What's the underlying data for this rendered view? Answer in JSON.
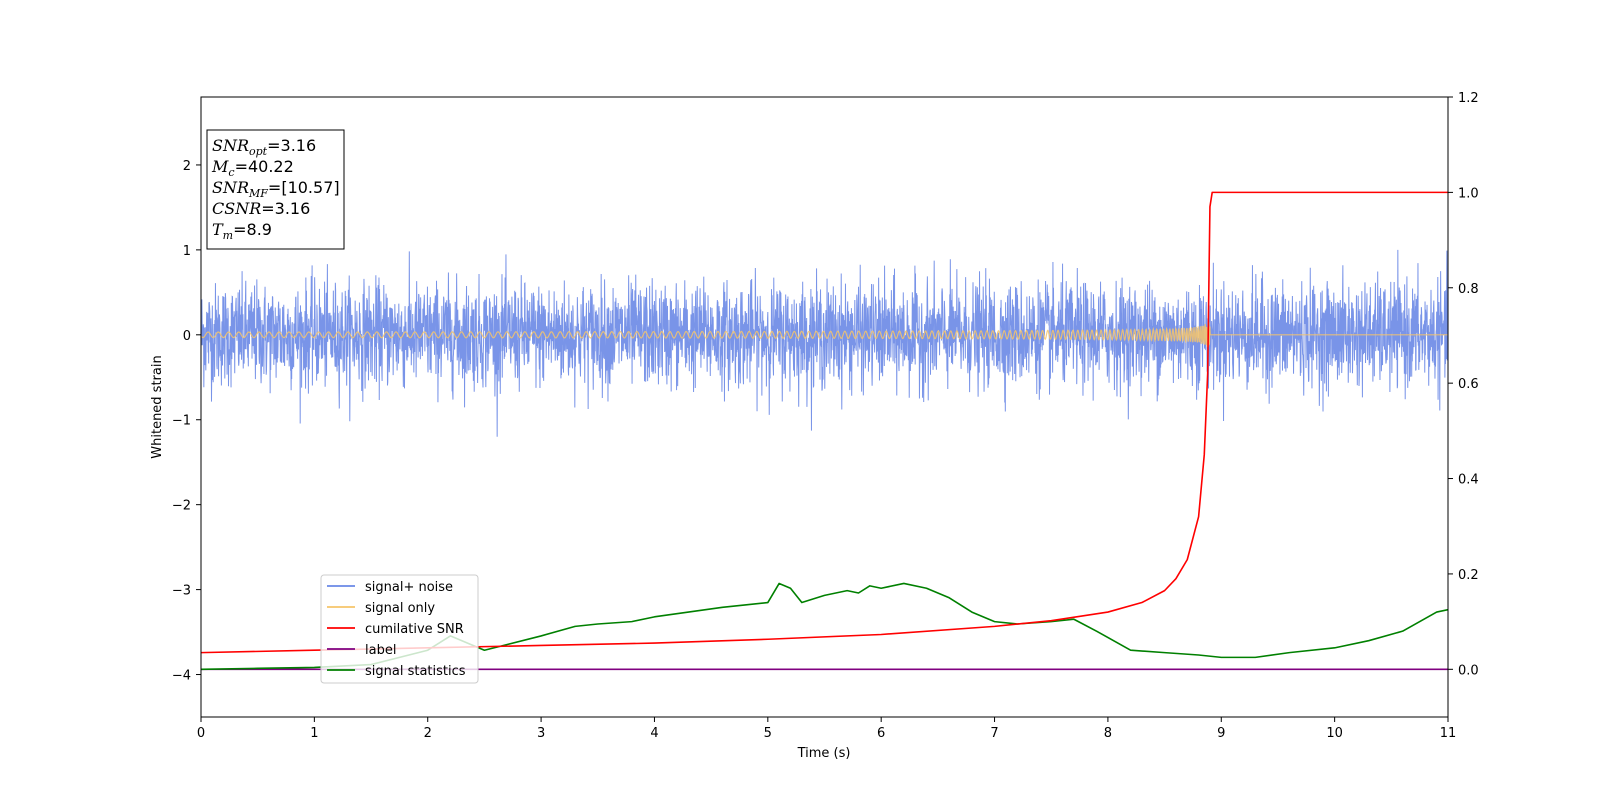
{
  "chart_data": {
    "type": "line",
    "title": "",
    "xlabel": "Time (s)",
    "ylabel": "Whitened strain",
    "xlim": [
      0,
      11
    ],
    "ylim_left": [
      -4.5,
      2.8
    ],
    "ylim_right": [
      -0.1,
      1.2
    ],
    "x_ticks": [
      0,
      1,
      2,
      3,
      4,
      5,
      6,
      7,
      8,
      9,
      10,
      11
    ],
    "x_tick_labels": [
      "0",
      "1",
      "2",
      "3",
      "4",
      "5",
      "6",
      "7",
      "8",
      "9",
      "10",
      "11"
    ],
    "y_left_ticks": [
      -4,
      -3,
      -2,
      -1,
      0,
      1,
      2
    ],
    "y_left_tick_labels": [
      "−4",
      "−3",
      "−2",
      "−1",
      "0",
      "1",
      "2"
    ],
    "y_right_ticks": [
      0.0,
      0.2,
      0.4,
      0.6,
      0.8,
      1.0,
      1.2
    ],
    "y_right_tick_labels": [
      "0.0",
      "0.2",
      "0.4",
      "0.6",
      "0.8",
      "1.0",
      "1.2"
    ],
    "grid": false,
    "legend_position": "lower-left",
    "colors": {
      "signal_noise": "#6a88e6",
      "signal_only": "#f6c46a",
      "cumulative_snr": "#ff0000",
      "label": "#800080",
      "signal_statistics": "#008000"
    },
    "series": [
      {
        "name": "signal+ noise",
        "axis": "left",
        "description_values": {
          "amplitude_range": [
            -1.2,
            1.0
          ],
          "mean": 0
        }
      },
      {
        "name": "signal only",
        "axis": "left",
        "description_values": {
          "baseline": 0,
          "chirp_peak_time": 8.9,
          "chirp_peak_amplitude": 0.15
        }
      },
      {
        "name": "cumilative SNR",
        "axis": "right",
        "x": [
          0,
          1,
          2,
          3,
          4,
          5,
          6,
          7,
          7.5,
          8,
          8.3,
          8.5,
          8.6,
          8.7,
          8.8,
          8.85,
          8.88,
          8.9,
          8.92,
          9,
          10,
          11
        ],
        "y": [
          0.035,
          0.04,
          0.045,
          0.05,
          0.055,
          0.063,
          0.073,
          0.09,
          0.102,
          0.12,
          0.14,
          0.165,
          0.19,
          0.23,
          0.32,
          0.45,
          0.62,
          0.97,
          1.0,
          1.0,
          1.0,
          1.0
        ]
      },
      {
        "name": "label",
        "axis": "right",
        "x": [
          0,
          11
        ],
        "y": [
          0,
          0
        ]
      },
      {
        "name": "signal statistics",
        "axis": "right",
        "x": [
          0,
          0.5,
          1,
          1.5,
          2,
          2.2,
          2.5,
          3,
          3.3,
          3.5,
          3.8,
          4,
          4.3,
          4.6,
          4.8,
          5,
          5.1,
          5.2,
          5.3,
          5.5,
          5.7,
          5.8,
          5.9,
          6,
          6.2,
          6.4,
          6.6,
          6.8,
          7,
          7.2,
          7.5,
          7.7,
          7.9,
          8.2,
          8.5,
          8.8,
          9,
          9.3,
          9.6,
          10,
          10.3,
          10.6,
          10.9,
          11
        ],
        "y": [
          0.0,
          0.002,
          0.004,
          0.01,
          0.04,
          0.07,
          0.04,
          0.07,
          0.09,
          0.095,
          0.1,
          0.11,
          0.12,
          0.13,
          0.135,
          0.14,
          0.18,
          0.17,
          0.14,
          0.155,
          0.165,
          0.16,
          0.175,
          0.17,
          0.18,
          0.17,
          0.15,
          0.12,
          0.1,
          0.095,
          0.1,
          0.105,
          0.08,
          0.04,
          0.035,
          0.03,
          0.025,
          0.025,
          0.035,
          0.045,
          0.06,
          0.08,
          0.12,
          0.125
        ]
      }
    ],
    "annotation": {
      "lines": [
        {
          "base": "SNR",
          "sub": "opt",
          "value": "=3.16"
        },
        {
          "base": "M",
          "sub": "c",
          "value": "=40.22"
        },
        {
          "base": "SNR",
          "sub": "MF",
          "value": "=[10.57]"
        },
        {
          "base": "CSNR",
          "sub": "",
          "value": "=3.16"
        },
        {
          "base": "T",
          "sub": "m",
          "value": "=8.9"
        }
      ]
    }
  }
}
